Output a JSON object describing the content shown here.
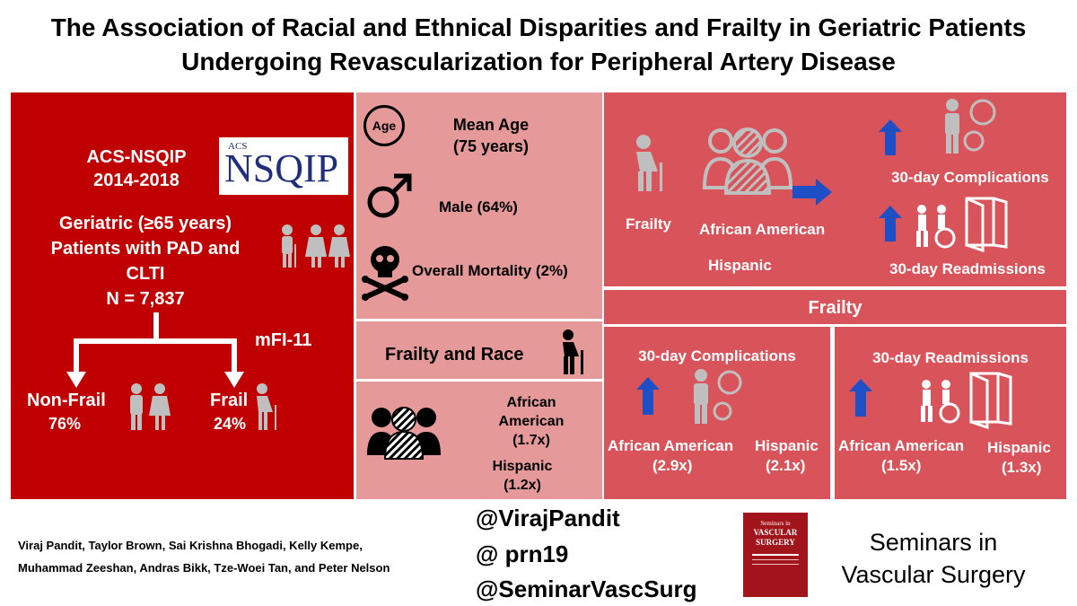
{
  "title": {
    "line1": "The Association of Racial and Ethnical Disparities and Frailty in Geriatric Patients",
    "line2": "Undergoing Revascularization for Peripheral Artery Disease"
  },
  "left_panel": {
    "database": "ACS-NSQIP",
    "years": "2014-2018",
    "logo_small": "ACS",
    "logo_text": "NSQIP",
    "population_line1": "Geriatric (≥65 years)",
    "population_line2": "Patients with PAD and",
    "population_line3": "CLTI",
    "n": "N = 7,837",
    "index": "mFI-11",
    "nonfrail_label": "Non-Frail",
    "nonfrail_pct": "76%",
    "frail_label": "Frail",
    "frail_pct": "24%"
  },
  "middle_panel": {
    "age_icon_text": "Age",
    "mean_age_label": "Mean Age",
    "mean_age_value": "(75 years)",
    "male": "Male (64%)",
    "mortality": "Overall Mortality  (2%)",
    "frailty_race_heading": "Frailty and Race",
    "aa_label_1": "African",
    "aa_label_2": "American",
    "aa_value": "(1.7x)",
    "hisp_label": "Hispanic",
    "hisp_value": "(1.2x)"
  },
  "right_top": {
    "frailty": "Frailty",
    "african_american": "African American",
    "hispanic": "Hispanic",
    "complications": "30-day Complications",
    "readmissions": "30-day Readmissions"
  },
  "right_bottom": {
    "heading": "Frailty",
    "complications": {
      "title": "30-day Complications",
      "aa_label": "African American",
      "aa_value": "(2.9x)",
      "hisp_label": "Hispanic",
      "hisp_value": "(2.1x)"
    },
    "readmissions": {
      "title": "30-day Readmissions",
      "aa_label": "African American",
      "aa_value": "(1.5x)",
      "hisp_label": "Hispanic",
      "hisp_value": "(1.3x)"
    }
  },
  "footer": {
    "authors_line1": "Viraj Pandit,  Taylor Brown, Sai Krishna Bhogadi, Kelly Kempe,",
    "authors_line2": "Muhammad Zeeshan,  Andras Bikk, Tze-Woei Tan, and Peter Nelson",
    "handle1": "@VirajPandit",
    "handle2": "@ prn19",
    "handle3": "@SeminarVascSurg",
    "journal_line1": "Seminars in",
    "journal_line2": "Vascular Surgery",
    "cover_line1": "Seminars in",
    "cover_line2": "VASCULAR",
    "cover_line3": "SURGERY"
  },
  "colors": {
    "dark_red": "#c00000",
    "pink": "#e69999",
    "mid_red": "#d9535a",
    "arrow_blue": "#1f4fc4",
    "icon_grey": "#bfbfbf"
  }
}
